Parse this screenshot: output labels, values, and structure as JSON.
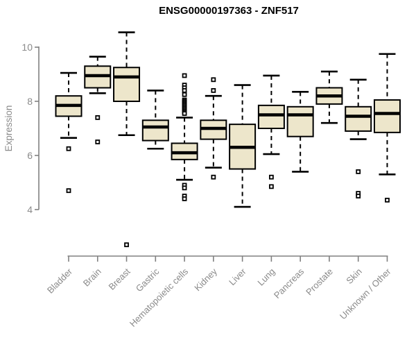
{
  "chart_data": {
    "type": "boxplot",
    "title": "ENSG00000197363 - ZNF517",
    "ylabel": "Expression",
    "xlabel": "",
    "y_ticks": [
      4,
      6,
      8,
      10
    ],
    "ylim": [
      4,
      10
    ],
    "grid": false,
    "legend": null,
    "categories": [
      "Bladder",
      "Brain",
      "Breast",
      "Gastric",
      "Hematopoietic cells",
      "Kidney",
      "Liver",
      "Lung",
      "Pancreas",
      "Prostate",
      "Skin",
      "Unknown / Other"
    ],
    "boxes": [
      {
        "category": "Bladder",
        "whisker_low": 6.65,
        "q1": 7.45,
        "median": 7.85,
        "q3": 8.2,
        "whisker_high": 9.05,
        "outliers": [
          6.25,
          4.7
        ]
      },
      {
        "category": "Brain",
        "whisker_low": 8.3,
        "q1": 8.5,
        "median": 8.95,
        "q3": 9.3,
        "whisker_high": 9.65,
        "outliers": [
          7.4,
          6.5
        ]
      },
      {
        "category": "Breast",
        "whisker_low": 6.75,
        "q1": 8.0,
        "median": 8.9,
        "q3": 9.25,
        "whisker_high": 10.55,
        "outliers": [
          2.7
        ]
      },
      {
        "category": "Gastric",
        "whisker_low": 6.25,
        "q1": 6.55,
        "median": 7.05,
        "q3": 7.3,
        "whisker_high": 8.4,
        "outliers": []
      },
      {
        "category": "Hematopoietic cells",
        "whisker_low": 5.1,
        "q1": 5.85,
        "median": 6.1,
        "q3": 6.45,
        "whisker_high": 7.4,
        "outliers": [
          8.95,
          8.6,
          8.5,
          8.4,
          8.25,
          8.05,
          8.0,
          7.95,
          7.9,
          7.85,
          7.8,
          7.75,
          7.7,
          7.65,
          7.6,
          7.55,
          4.9,
          4.8,
          4.5,
          4.4
        ]
      },
      {
        "category": "Kidney",
        "whisker_low": 5.55,
        "q1": 6.6,
        "median": 7.0,
        "q3": 7.3,
        "whisker_high": 8.2,
        "outliers": [
          8.8,
          8.4,
          5.2
        ]
      },
      {
        "category": "Liver",
        "whisker_low": 4.1,
        "q1": 5.5,
        "median": 6.3,
        "q3": 7.15,
        "whisker_high": 8.6,
        "outliers": []
      },
      {
        "category": "Lung",
        "whisker_low": 6.05,
        "q1": 7.0,
        "median": 7.5,
        "q3": 7.85,
        "whisker_high": 8.95,
        "outliers": [
          5.2,
          4.85
        ]
      },
      {
        "category": "Pancreas",
        "whisker_low": 5.4,
        "q1": 6.7,
        "median": 7.5,
        "q3": 7.8,
        "whisker_high": 8.35,
        "outliers": []
      },
      {
        "category": "Prostate",
        "whisker_low": 7.2,
        "q1": 7.9,
        "median": 8.2,
        "q3": 8.5,
        "whisker_high": 9.1,
        "outliers": []
      },
      {
        "category": "Skin",
        "whisker_low": 6.6,
        "q1": 6.9,
        "median": 7.45,
        "q3": 7.8,
        "whisker_high": 8.8,
        "outliers": [
          5.4,
          4.6,
          4.5
        ]
      },
      {
        "category": "Unknown / Other",
        "whisker_low": 5.3,
        "q1": 6.85,
        "median": 7.55,
        "q3": 8.05,
        "whisker_high": 9.75,
        "outliers": [
          4.35
        ]
      }
    ],
    "colors": {
      "box_fill": "#EDE6CB",
      "box_stroke": "#000000",
      "median": "#000000",
      "axis": "#808080",
      "tick_label": "#8A8A8A",
      "title": "#000000",
      "background": "#FFFFFF",
      "outlier_fill": "#FFFFFF"
    }
  }
}
